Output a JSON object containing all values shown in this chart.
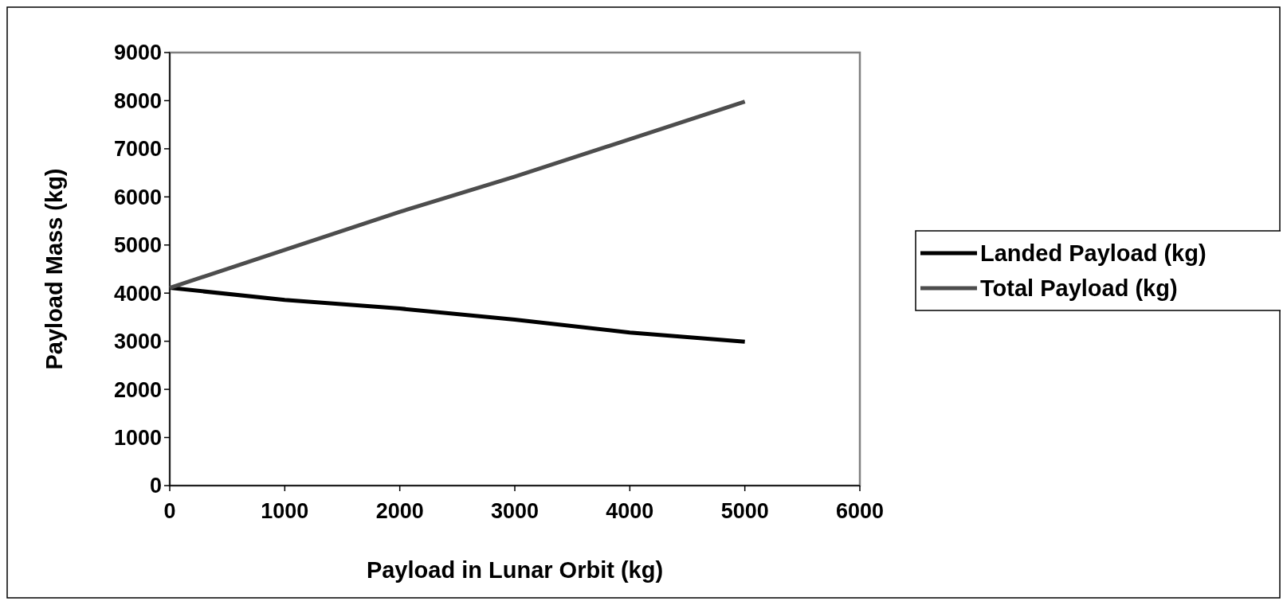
{
  "chart_data": {
    "type": "line",
    "xlabel": "Payload in Lunar Orbit (kg)",
    "ylabel": "Payload Mass (kg)",
    "x": [
      0,
      1000,
      2000,
      3000,
      4000,
      5000
    ],
    "xlim": [
      0,
      6000
    ],
    "xticks": [
      0,
      1000,
      2000,
      3000,
      4000,
      5000,
      6000
    ],
    "ylim": [
      0,
      9000
    ],
    "yticks": [
      0,
      1000,
      2000,
      3000,
      4000,
      5000,
      6000,
      7000,
      8000,
      9000
    ],
    "grid": false,
    "legend": "right",
    "line_style": "solid",
    "series": [
      {
        "name": "Landed Payload (kg)",
        "color": "#000000",
        "values": [
          4110,
          3860,
          3680,
          3450,
          3180,
          2990
        ]
      },
      {
        "name": "Total Payload (kg)",
        "color": "#4d4d4d",
        "values": [
          4110,
          4900,
          5690,
          6420,
          7200,
          7980
        ]
      }
    ]
  }
}
